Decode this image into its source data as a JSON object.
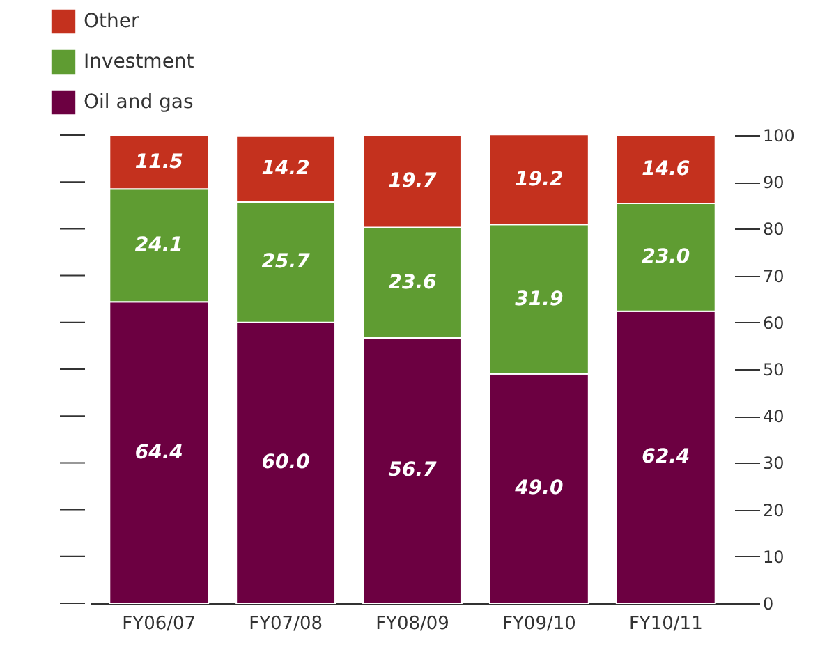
{
  "chart_data": {
    "type": "bar",
    "stacked": true,
    "categories": [
      "FY06/07",
      "FY07/08",
      "FY08/09",
      "FY09/10",
      "FY10/11"
    ],
    "series": [
      {
        "name": "Oil and gas",
        "color": "#6c0041",
        "values": [
          64.4,
          60.0,
          56.7,
          49.0,
          62.4
        ],
        "value_labels": [
          "64.4",
          "60.0",
          "56.7",
          "49.0",
          "62.4"
        ]
      },
      {
        "name": "Investment",
        "color": "#5f9c32",
        "values": [
          24.1,
          25.7,
          23.6,
          31.9,
          23.0
        ],
        "value_labels": [
          "24.1",
          "25.7",
          "23.6",
          "31.9",
          "23.0"
        ]
      },
      {
        "name": "Other",
        "color": "#c4311e",
        "values": [
          11.5,
          14.2,
          19.7,
          19.2,
          14.6
        ],
        "value_labels": [
          "11.5",
          "14.2",
          "19.7",
          "19.2",
          "14.6"
        ]
      }
    ],
    "ylim": [
      0,
      100
    ],
    "yticks": [
      0,
      10,
      20,
      30,
      40,
      50,
      60,
      70,
      80,
      90,
      100
    ],
    "legend": "top left"
  }
}
